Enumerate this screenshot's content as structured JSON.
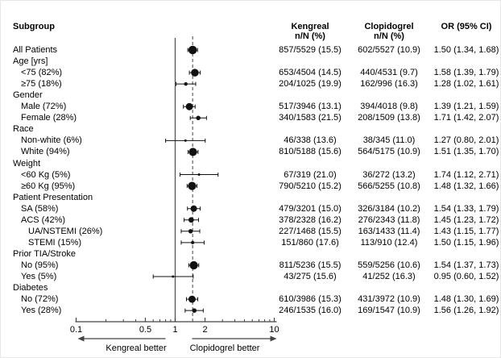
{
  "header": {
    "subgroup": "Subgroup",
    "kengreal_line1": "Kengreal",
    "kengreal_line2": "n/N (%)",
    "clopidogrel_line1": "Clopidogrel",
    "clopidogrel_line2": "n/N (%)",
    "or_col": "OR (95% CI)"
  },
  "colors": {
    "text": "#000000",
    "marker": "#111111",
    "reference_line": "#555555",
    "overall_line": "#444444",
    "axis": "#444444"
  },
  "chart_data": {
    "type": "forest",
    "x_axis": {
      "scale": "log",
      "min": 0.1,
      "max": 10,
      "major_ticks": [
        0.1,
        0.5,
        1,
        2,
        10
      ],
      "tick_labels": [
        "0.1",
        "0.5",
        "1",
        "2",
        "10"
      ],
      "minor_ticks": [
        0.2,
        0.3,
        0.4,
        0.6,
        0.7,
        0.8,
        0.9,
        3,
        4,
        5,
        6,
        7,
        8,
        9
      ],
      "reference_line": 1.0,
      "overall_or_dashed_line": 1.5
    },
    "footer": {
      "left_arrow_label": "Kengreal better",
      "right_arrow_label": "Clopidogrel better"
    },
    "rows": [
      {
        "label": "All Patients",
        "indent": 0,
        "kengreal": "857/5529 (15.5)",
        "clopidogrel": "602/5527 (10.9)",
        "or_text": "1.50 (1.34, 1.68)",
        "or": 1.5,
        "ci_low": 1.34,
        "ci_high": 1.68,
        "weight_pct": 100
      },
      {
        "label": "Age [yrs]",
        "indent": 0
      },
      {
        "label": "<75 (82%)",
        "indent": 1,
        "kengreal": "653/4504 (14.5)",
        "clopidogrel": "440/4531 (9.7)",
        "or_text": "1.58 (1.39, 1.79)",
        "or": 1.58,
        "ci_low": 1.39,
        "ci_high": 1.79,
        "weight_pct": 82
      },
      {
        "label": "≥75 (18%)",
        "indent": 1,
        "kengreal": "204/1025 (19.9)",
        "clopidogrel": "162/996 (16.3)",
        "or_text": "1.28 (1.02, 1.61)",
        "or": 1.28,
        "ci_low": 1.02,
        "ci_high": 1.61,
        "weight_pct": 18
      },
      {
        "label": "Gender",
        "indent": 0
      },
      {
        "label": "Male (72%)",
        "indent": 1,
        "kengreal": "517/3946 (13.1)",
        "clopidogrel": "394/4018 (9.8)",
        "or_text": "1.39 (1.21, 1.59)",
        "or": 1.39,
        "ci_low": 1.21,
        "ci_high": 1.59,
        "weight_pct": 72
      },
      {
        "label": "Female (28%)",
        "indent": 1,
        "kengreal": "340/1583 (21.5)",
        "clopidogrel": "208/1509 (13.8)",
        "or_text": "1.71 (1.42, 2.07)",
        "or": 1.71,
        "ci_low": 1.42,
        "ci_high": 2.07,
        "weight_pct": 28
      },
      {
        "label": "Race",
        "indent": 0
      },
      {
        "label": "Non-white (6%)",
        "indent": 1,
        "kengreal": "46/338 (13.6)",
        "clopidogrel": "38/345 (11.0)",
        "or_text": "1.27 (0.80, 2.01)",
        "or": 1.27,
        "ci_low": 0.8,
        "ci_high": 2.01,
        "weight_pct": 6
      },
      {
        "label": "White (94%)",
        "indent": 1,
        "kengreal": "810/5188 (15.6)",
        "clopidogrel": "564/5175 (10.9)",
        "or_text": "1.51 (1.35, 1.70)",
        "or": 1.51,
        "ci_low": 1.35,
        "ci_high": 1.7,
        "weight_pct": 94
      },
      {
        "label": "Weight",
        "indent": 0
      },
      {
        "label": "<60 Kg (5%)",
        "indent": 1,
        "kengreal": "67/319 (21.0)",
        "clopidogrel": "36/272 (13.2)",
        "or_text": "1.74 (1.12, 2.71)",
        "or": 1.74,
        "ci_low": 1.12,
        "ci_high": 2.71,
        "weight_pct": 5
      },
      {
        "label": "≥60 Kg (95%)",
        "indent": 1,
        "kengreal": "790/5210 (15.2)",
        "clopidogrel": "566/5255 (10.8)",
        "or_text": "1.48 (1.32, 1.66)",
        "or": 1.48,
        "ci_low": 1.32,
        "ci_high": 1.66,
        "weight_pct": 95
      },
      {
        "label": "Patient Presentation",
        "indent": 0
      },
      {
        "label": "SA (58%)",
        "indent": 1,
        "kengreal": "479/3201 (15.0)",
        "clopidogrel": "326/3184 (10.2)",
        "or_text": "1.54 (1.33, 1.79)",
        "or": 1.54,
        "ci_low": 1.33,
        "ci_high": 1.79,
        "weight_pct": 58
      },
      {
        "label": "ACS (42%)",
        "indent": 1,
        "kengreal": "378/2328 (16.2)",
        "clopidogrel": "276/2343 (11.8)",
        "or_text": "1.45 (1.23, 1.72)",
        "or": 1.45,
        "ci_low": 1.23,
        "ci_high": 1.72,
        "weight_pct": 42
      },
      {
        "label": "UA/NSTEMI (26%)",
        "indent": 2,
        "kengreal": "227/1468 (15.5)",
        "clopidogrel": "163/1433 (11.4)",
        "or_text": "1.43 (1.15, 1.77)",
        "or": 1.43,
        "ci_low": 1.15,
        "ci_high": 1.77,
        "weight_pct": 26
      },
      {
        "label": "STEMI (15%)",
        "indent": 2,
        "kengreal": "151/860 (17.6)",
        "clopidogrel": "113/910 (12.4)",
        "or_text": "1.50 (1.15, 1.96)",
        "or": 1.5,
        "ci_low": 1.15,
        "ci_high": 1.96,
        "weight_pct": 15
      },
      {
        "label": "Prior TIA/Stroke",
        "indent": 0
      },
      {
        "label": "No (95%)",
        "indent": 1,
        "kengreal": "811/5236 (15.5)",
        "clopidogrel": "559/5256 (10.6)",
        "or_text": "1.54 (1.37, 1.73)",
        "or": 1.54,
        "ci_low": 1.37,
        "ci_high": 1.73,
        "weight_pct": 95
      },
      {
        "label": "Yes (5%)",
        "indent": 1,
        "kengreal": "43/275 (15.6)",
        "clopidogrel": "41/252 (16.3)",
        "or_text": "0.95 (0.60, 1.52)",
        "or": 0.95,
        "ci_low": 0.6,
        "ci_high": 1.52,
        "weight_pct": 5
      },
      {
        "label": "Diabetes",
        "indent": 0
      },
      {
        "label": "No (72%)",
        "indent": 1,
        "kengreal": "610/3986 (15.3)",
        "clopidogrel": "431/3972 (10.9)",
        "or_text": "1.48 (1.30, 1.69)",
        "or": 1.48,
        "ci_low": 1.3,
        "ci_high": 1.69,
        "weight_pct": 72
      },
      {
        "label": "Yes (28%)",
        "indent": 1,
        "kengreal": "246/1535 (16.0)",
        "clopidogrel": "169/1547 (10.9)",
        "or_text": "1.56 (1.26, 1.92)",
        "or": 1.56,
        "ci_low": 1.26,
        "ci_high": 1.92,
        "weight_pct": 28
      }
    ]
  }
}
